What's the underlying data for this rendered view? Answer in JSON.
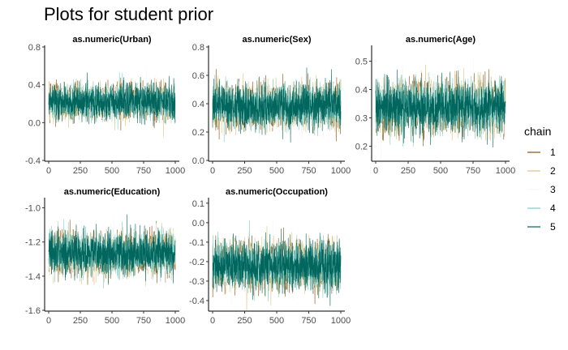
{
  "page_title": "Plots for student prior",
  "legend": {
    "title": "chain",
    "items": [
      {
        "label": "1",
        "color": "#8c510a"
      },
      {
        "label": "2",
        "color": "#dfc27d"
      },
      {
        "label": "3",
        "color": "#f6f6f6"
      },
      {
        "label": "4",
        "color": "#80cdc1"
      },
      {
        "label": "5",
        "color": "#01665e"
      }
    ]
  },
  "chart_data": [
    {
      "type": "line",
      "title": "as.numeric(Urban)",
      "xlim": [
        0,
        1000
      ],
      "x_ticks": [
        0,
        250,
        500,
        750,
        1000
      ],
      "ylim": [
        -0.4,
        0.8
      ],
      "y_ticks": [
        -0.4,
        0.0,
        0.4,
        0.8
      ],
      "iterations": 1000,
      "series_center": 0.22,
      "series_spread": 0.09,
      "series": [
        {
          "name": "1"
        },
        {
          "name": "2"
        },
        {
          "name": "3"
        },
        {
          "name": "4"
        },
        {
          "name": "5"
        }
      ]
    },
    {
      "type": "line",
      "title": "as.numeric(Sex)",
      "xlim": [
        0,
        1000
      ],
      "x_ticks": [
        0,
        250,
        500,
        750,
        1000
      ],
      "ylim": [
        0.0,
        0.8
      ],
      "y_ticks": [
        0.0,
        0.2,
        0.4,
        0.6,
        0.8
      ],
      "iterations": 1000,
      "series_center": 0.38,
      "series_spread": 0.075,
      "series": [
        {
          "name": "1"
        },
        {
          "name": "2"
        },
        {
          "name": "3"
        },
        {
          "name": "4"
        },
        {
          "name": "5"
        }
      ]
    },
    {
      "type": "line",
      "title": "as.numeric(Age)",
      "xlim": [
        0,
        1000
      ],
      "x_ticks": [
        0,
        250,
        500,
        750,
        1000
      ],
      "ylim": [
        0.15,
        0.55
      ],
      "y_ticks": [
        0.2,
        0.3,
        0.4,
        0.5
      ],
      "iterations": 1000,
      "series_center": 0.34,
      "series_spread": 0.045,
      "series": [
        {
          "name": "1"
        },
        {
          "name": "2"
        },
        {
          "name": "3"
        },
        {
          "name": "4"
        },
        {
          "name": "5"
        }
      ]
    },
    {
      "type": "line",
      "title": "as.numeric(Education)",
      "xlim": [
        0,
        1000
      ],
      "x_ticks": [
        0,
        250,
        500,
        750,
        1000
      ],
      "ylim": [
        -1.6,
        -0.95
      ],
      "y_ticks": [
        -1.6,
        -1.4,
        -1.2,
        -1.0
      ],
      "iterations": 1000,
      "series_center": -1.27,
      "series_spread": 0.06,
      "series": [
        {
          "name": "1"
        },
        {
          "name": "2"
        },
        {
          "name": "3"
        },
        {
          "name": "4"
        },
        {
          "name": "5"
        }
      ]
    },
    {
      "type": "line",
      "title": "as.numeric(Occupation)",
      "xlim": [
        0,
        1000
      ],
      "x_ticks": [
        0,
        250,
        500,
        750,
        1000
      ],
      "ylim": [
        -0.45,
        0.12
      ],
      "y_ticks": [
        -0.4,
        -0.3,
        -0.2,
        -0.1,
        0.0,
        0.1
      ],
      "iterations": 1000,
      "series_center": -0.22,
      "series_spread": 0.06,
      "series": [
        {
          "name": "1"
        },
        {
          "name": "2"
        },
        {
          "name": "3"
        },
        {
          "name": "4"
        },
        {
          "name": "5"
        }
      ]
    }
  ]
}
